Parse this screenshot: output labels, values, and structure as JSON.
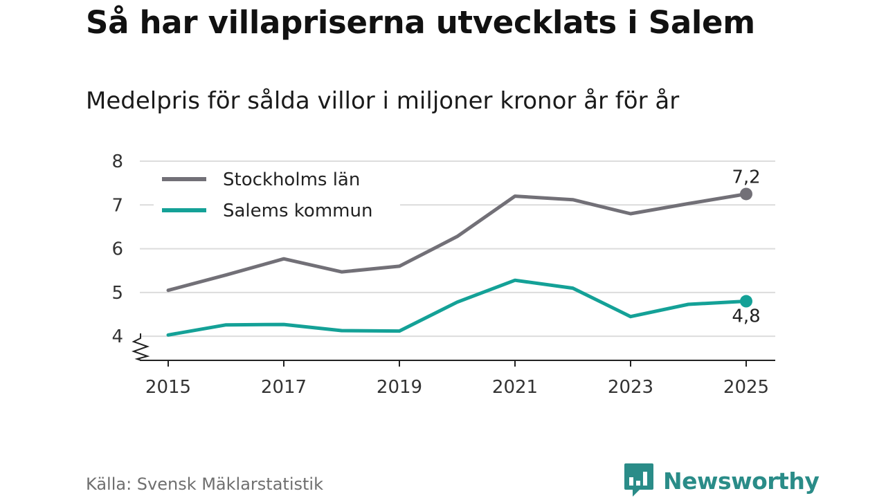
{
  "title": "Så har villapriserna utvecklats i Salem",
  "subtitle": "Medelpris för sålda villor i miljoner kronor år för år",
  "source": "Källa: Svensk Mäklarstatistik",
  "brand": {
    "name": "Newsworthy",
    "color": "#2a8c88"
  },
  "chart_data": {
    "type": "line",
    "title": "Så har villapriserna utvecklats i Salem",
    "subtitle": "Medelpris för sålda villor i miljoner kronor år för år",
    "xlabel": "",
    "ylabel": "",
    "x": [
      2015,
      2016,
      2017,
      2018,
      2019,
      2020,
      2021,
      2022,
      2023,
      2024,
      2025
    ],
    "x_ticks": [
      "2015",
      "2017",
      "2019",
      "2021",
      "2023",
      "2025"
    ],
    "y_ticks": [
      "4",
      "5",
      "6",
      "7",
      "8"
    ],
    "ylim": [
      3.45,
      8
    ],
    "grid": true,
    "axis_break": true,
    "legend_position": "top-left",
    "series": [
      {
        "name": "Stockholms län",
        "color": "#727077",
        "values": [
          5.05,
          5.4,
          5.77,
          5.47,
          5.6,
          6.28,
          7.2,
          7.12,
          6.8,
          7.03,
          7.25
        ],
        "end_label": "7,2"
      },
      {
        "name": "Salems kommun",
        "color": "#14a197",
        "values": [
          4.03,
          4.26,
          4.27,
          4.13,
          4.12,
          4.78,
          5.28,
          5.1,
          4.45,
          4.73,
          4.8
        ],
        "end_label": "4,8"
      }
    ]
  }
}
